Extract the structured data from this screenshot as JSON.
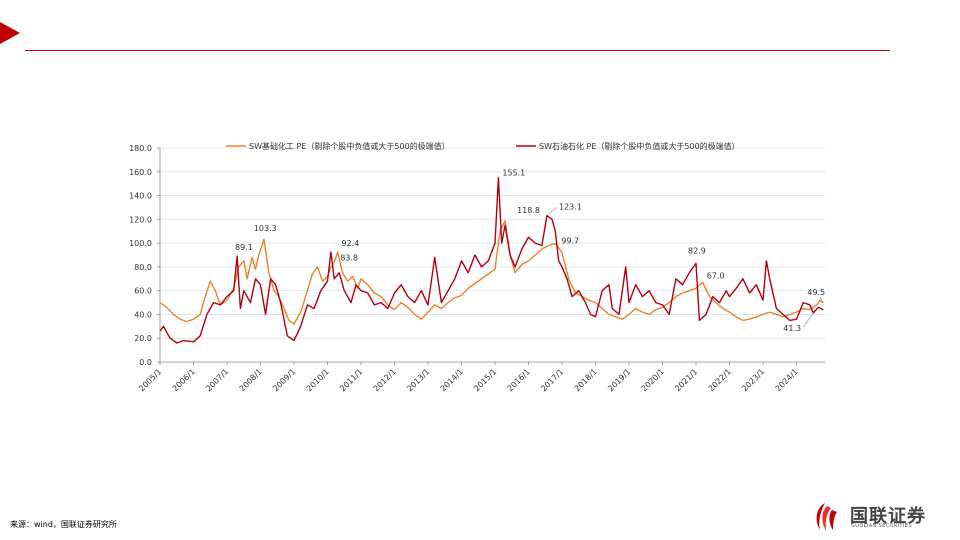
{
  "source_text": "来源：wind，国联证券研究所",
  "logo": {
    "name": "国联证券",
    "sub": "GUOLIAN SECURITIES"
  },
  "colors": {
    "accent": "#c00000",
    "series_a": "#e8822b",
    "series_b": "#b30012"
  },
  "chart_data": {
    "type": "line",
    "title": "",
    "xlabel": "",
    "ylabel": "",
    "ylim": [
      0,
      180
    ],
    "yticks": [
      "0.0",
      "20.0",
      "40.0",
      "60.0",
      "80.0",
      "100.0",
      "120.0",
      "140.0",
      "160.0",
      "180.0"
    ],
    "xticks": [
      "2005/1",
      "2006/1",
      "2007/1",
      "2008/1",
      "2009/1",
      "2010/1",
      "2011/1",
      "2012/1",
      "2013/1",
      "2014/1",
      "2015/1",
      "2016/1",
      "2017/1",
      "2018/1",
      "2019/1",
      "2020/1",
      "2021/1",
      "2022/1",
      "2023/1",
      "2024/1"
    ],
    "grid": "horizontal",
    "legend": "top",
    "series": [
      {
        "name": "SW基础化工 PE（剔除个股中负值或大于500的极端值）",
        "color": "#e8822b",
        "points": [
          [
            2005.0,
            50
          ],
          [
            2005.2,
            46
          ],
          [
            2005.4,
            40
          ],
          [
            2005.6,
            36
          ],
          [
            2005.8,
            34
          ],
          [
            2006.0,
            36
          ],
          [
            2006.2,
            40
          ],
          [
            2006.35,
            55
          ],
          [
            2006.5,
            68
          ],
          [
            2006.65,
            60
          ],
          [
            2006.8,
            48
          ],
          [
            2007.0,
            52
          ],
          [
            2007.2,
            62
          ],
          [
            2007.35,
            80
          ],
          [
            2007.5,
            85
          ],
          [
            2007.6,
            70
          ],
          [
            2007.75,
            88
          ],
          [
            2007.85,
            78
          ],
          [
            2007.95,
            90
          ],
          [
            2008.1,
            103.3
          ],
          [
            2008.25,
            75
          ],
          [
            2008.4,
            60
          ],
          [
            2008.55,
            55
          ],
          [
            2008.7,
            45
          ],
          [
            2008.85,
            35
          ],
          [
            2009.0,
            32
          ],
          [
            2009.2,
            42
          ],
          [
            2009.4,
            60
          ],
          [
            2009.55,
            74
          ],
          [
            2009.7,
            80
          ],
          [
            2009.85,
            68
          ],
          [
            2010.0,
            72
          ],
          [
            2010.1,
            80
          ],
          [
            2010.2,
            83.8
          ],
          [
            2010.3,
            92.4
          ],
          [
            2010.45,
            75
          ],
          [
            2010.6,
            68
          ],
          [
            2010.75,
            72
          ],
          [
            2010.9,
            62
          ],
          [
            2011.0,
            70
          ],
          [
            2011.2,
            65
          ],
          [
            2011.4,
            58
          ],
          [
            2011.6,
            55
          ],
          [
            2011.8,
            48
          ],
          [
            2012.0,
            44
          ],
          [
            2012.2,
            50
          ],
          [
            2012.4,
            46
          ],
          [
            2012.6,
            40
          ],
          [
            2012.8,
            36
          ],
          [
            2013.0,
            42
          ],
          [
            2013.2,
            48
          ],
          [
            2013.4,
            45
          ],
          [
            2013.6,
            50
          ],
          [
            2013.8,
            54
          ],
          [
            2014.0,
            56
          ],
          [
            2014.2,
            62
          ],
          [
            2014.4,
            66
          ],
          [
            2014.6,
            70
          ],
          [
            2014.8,
            74
          ],
          [
            2015.0,
            78
          ],
          [
            2015.15,
            110
          ],
          [
            2015.3,
            118.8
          ],
          [
            2015.45,
            90
          ],
          [
            2015.6,
            75
          ],
          [
            2015.8,
            82
          ],
          [
            2016.0,
            85
          ],
          [
            2016.2,
            90
          ],
          [
            2016.4,
            95
          ],
          [
            2016.6,
            98
          ],
          [
            2016.8,
            99.7
          ],
          [
            2017.0,
            92
          ],
          [
            2017.2,
            70
          ],
          [
            2017.4,
            58
          ],
          [
            2017.6,
            55
          ],
          [
            2017.8,
            52
          ],
          [
            2018.0,
            50
          ],
          [
            2018.2,
            45
          ],
          [
            2018.4,
            40
          ],
          [
            2018.6,
            38
          ],
          [
            2018.8,
            36
          ],
          [
            2019.0,
            40
          ],
          [
            2019.2,
            45
          ],
          [
            2019.4,
            42
          ],
          [
            2019.6,
            40
          ],
          [
            2019.8,
            44
          ],
          [
            2020.0,
            46
          ],
          [
            2020.2,
            50
          ],
          [
            2020.4,
            55
          ],
          [
            2020.6,
            58
          ],
          [
            2020.8,
            60
          ],
          [
            2021.0,
            62
          ],
          [
            2021.2,
            67.0
          ],
          [
            2021.4,
            55
          ],
          [
            2021.6,
            50
          ],
          [
            2021.8,
            45
          ],
          [
            2022.0,
            42
          ],
          [
            2022.2,
            38
          ],
          [
            2022.4,
            35
          ],
          [
            2022.6,
            36
          ],
          [
            2022.8,
            38
          ],
          [
            2023.0,
            40
          ],
          [
            2023.2,
            42
          ],
          [
            2023.4,
            40
          ],
          [
            2023.6,
            38
          ],
          [
            2023.8,
            40
          ],
          [
            2024.0,
            42
          ],
          [
            2024.2,
            45
          ],
          [
            2024.4,
            44
          ],
          [
            2024.6,
            48
          ],
          [
            2024.7,
            52
          ],
          [
            2024.8,
            49.5
          ]
        ]
      },
      {
        "name": "SW石油石化 PE（剔除个股中负值或大于500的极端值）",
        "color": "#b30012",
        "points": [
          [
            2005.0,
            26
          ],
          [
            2005.1,
            30
          ],
          [
            2005.3,
            20
          ],
          [
            2005.5,
            16
          ],
          [
            2005.7,
            18
          ],
          [
            2006.0,
            17
          ],
          [
            2006.2,
            22
          ],
          [
            2006.4,
            40
          ],
          [
            2006.6,
            50
          ],
          [
            2006.8,
            48
          ],
          [
            2007.0,
            55
          ],
          [
            2007.2,
            60
          ],
          [
            2007.3,
            89.1
          ],
          [
            2007.4,
            45
          ],
          [
            2007.5,
            60
          ],
          [
            2007.7,
            50
          ],
          [
            2007.85,
            70
          ],
          [
            2008.0,
            65
          ],
          [
            2008.15,
            40
          ],
          [
            2008.3,
            70
          ],
          [
            2008.45,
            65
          ],
          [
            2008.6,
            50
          ],
          [
            2008.8,
            22
          ],
          [
            2009.0,
            18
          ],
          [
            2009.2,
            30
          ],
          [
            2009.4,
            48
          ],
          [
            2009.6,
            45
          ],
          [
            2009.8,
            60
          ],
          [
            2010.0,
            68
          ],
          [
            2010.1,
            92.4
          ],
          [
            2010.2,
            70
          ],
          [
            2010.35,
            75
          ],
          [
            2010.5,
            60
          ],
          [
            2010.7,
            50
          ],
          [
            2010.85,
            65
          ],
          [
            2011.0,
            60
          ],
          [
            2011.2,
            58
          ],
          [
            2011.4,
            48
          ],
          [
            2011.6,
            50
          ],
          [
            2011.8,
            45
          ],
          [
            2012.0,
            58
          ],
          [
            2012.2,
            65
          ],
          [
            2012.4,
            55
          ],
          [
            2012.6,
            50
          ],
          [
            2012.8,
            60
          ],
          [
            2013.0,
            48
          ],
          [
            2013.2,
            88
          ],
          [
            2013.4,
            50
          ],
          [
            2013.6,
            60
          ],
          [
            2013.8,
            70
          ],
          [
            2014.0,
            85
          ],
          [
            2014.2,
            75
          ],
          [
            2014.4,
            90
          ],
          [
            2014.6,
            80
          ],
          [
            2014.8,
            85
          ],
          [
            2015.0,
            100
          ],
          [
            2015.1,
            155.1
          ],
          [
            2015.2,
            100
          ],
          [
            2015.3,
            115
          ],
          [
            2015.45,
            90
          ],
          [
            2015.6,
            80
          ],
          [
            2015.8,
            95
          ],
          [
            2016.0,
            105
          ],
          [
            2016.2,
            100
          ],
          [
            2016.4,
            98
          ],
          [
            2016.55,
            123.1
          ],
          [
            2016.7,
            120
          ],
          [
            2016.8,
            110
          ],
          [
            2016.9,
            85
          ],
          [
            2017.0,
            80
          ],
          [
            2017.15,
            70
          ],
          [
            2017.3,
            55
          ],
          [
            2017.5,
            60
          ],
          [
            2017.7,
            50
          ],
          [
            2017.85,
            40
          ],
          [
            2018.0,
            38
          ],
          [
            2018.2,
            60
          ],
          [
            2018.4,
            65
          ],
          [
            2018.5,
            45
          ],
          [
            2018.7,
            40
          ],
          [
            2018.9,
            80
          ],
          [
            2019.0,
            50
          ],
          [
            2019.2,
            65
          ],
          [
            2019.4,
            55
          ],
          [
            2019.6,
            60
          ],
          [
            2019.8,
            50
          ],
          [
            2020.0,
            48
          ],
          [
            2020.2,
            40
          ],
          [
            2020.4,
            70
          ],
          [
            2020.6,
            65
          ],
          [
            2020.8,
            75
          ],
          [
            2021.0,
            82.9
          ],
          [
            2021.1,
            35
          ],
          [
            2021.3,
            40
          ],
          [
            2021.5,
            55
          ],
          [
            2021.7,
            50
          ],
          [
            2021.9,
            60
          ],
          [
            2022.0,
            55
          ],
          [
            2022.2,
            62
          ],
          [
            2022.4,
            70
          ],
          [
            2022.6,
            58
          ],
          [
            2022.8,
            65
          ],
          [
            2023.0,
            52
          ],
          [
            2023.1,
            85
          ],
          [
            2023.2,
            70
          ],
          [
            2023.4,
            45
          ],
          [
            2023.6,
            40
          ],
          [
            2023.8,
            35
          ],
          [
            2024.0,
            36
          ],
          [
            2024.2,
            50
          ],
          [
            2024.4,
            48
          ],
          [
            2024.5,
            41.3
          ],
          [
            2024.65,
            46
          ],
          [
            2024.8,
            44
          ]
        ]
      }
    ],
    "annotations": [
      {
        "text": "89.1",
        "x": 2007.3,
        "y": 89.1,
        "series": 1
      },
      {
        "text": "103.3",
        "x": 2008.1,
        "y": 103.3,
        "series": 0
      },
      {
        "text": "92.4",
        "x": 2010.3,
        "y": 92.4,
        "series": 1
      },
      {
        "text": "83.8",
        "x": 2010.2,
        "y": 83.8,
        "series": 0
      },
      {
        "text": "155.1",
        "x": 2015.1,
        "y": 155.1,
        "series": 1
      },
      {
        "text": "118.8",
        "x": 2015.3,
        "y": 118.8,
        "series": 0
      },
      {
        "text": "123.1",
        "x": 2016.55,
        "y": 123.1,
        "series": 1
      },
      {
        "text": "99.7",
        "x": 2016.8,
        "y": 99.7,
        "series": 0
      },
      {
        "text": "82.9",
        "x": 2021.0,
        "y": 82.9,
        "series": 1
      },
      {
        "text": "67.0",
        "x": 2021.2,
        "y": 67.0,
        "series": 0
      },
      {
        "text": "49.5",
        "x": 2024.8,
        "y": 49.5,
        "series": 0
      },
      {
        "text": "41.3",
        "x": 2024.5,
        "y": 41.3,
        "series": 1
      }
    ]
  }
}
